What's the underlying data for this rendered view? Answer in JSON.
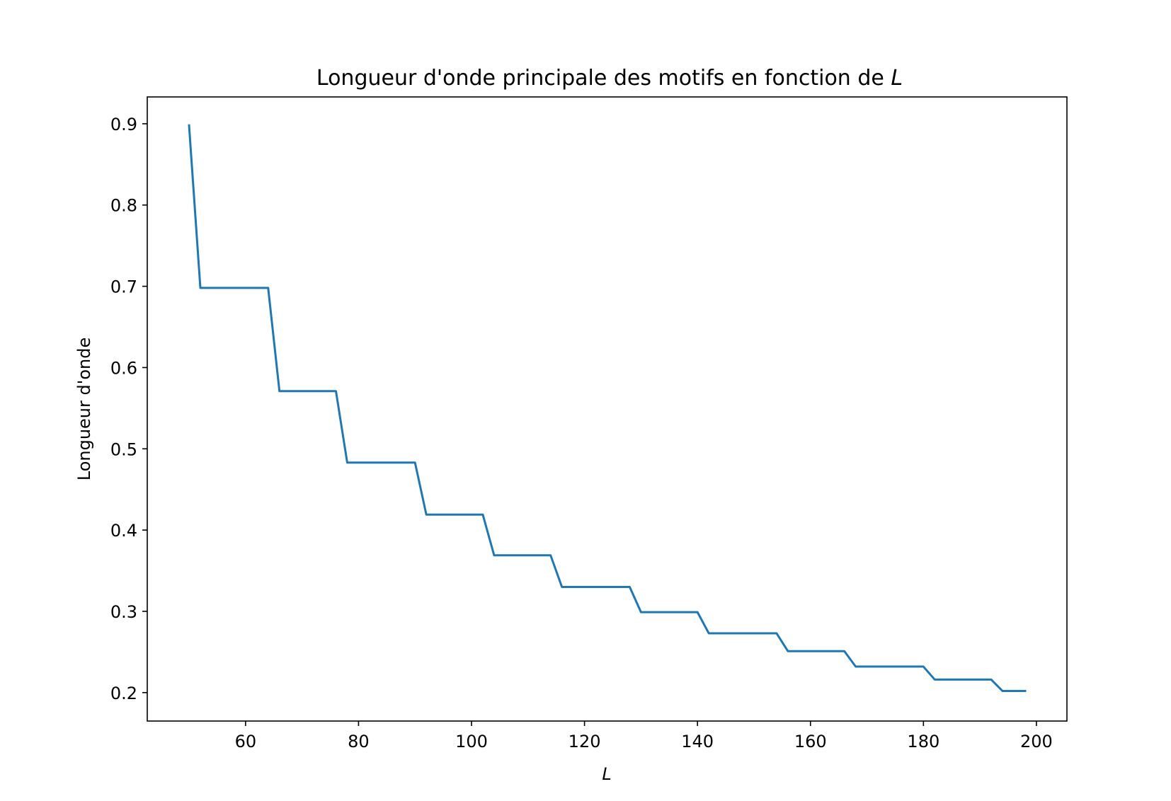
{
  "chart_data": {
    "type": "line",
    "title": "Longueur d'onde principale des motifs en fonction de ",
    "title_var": "L",
    "xlabel": "L",
    "ylabel": "Longueur d'onde",
    "xlim": [
      42.6,
      205.4
    ],
    "ylim": [
      0.165,
      0.933
    ],
    "xticks": [
      60,
      80,
      100,
      120,
      140,
      160,
      180,
      200
    ],
    "yticks": [
      0.2,
      0.3,
      0.4,
      0.5,
      0.6,
      0.7,
      0.8,
      0.9
    ],
    "grid": false,
    "color": "#1f77b4",
    "series": [
      {
        "x": [
          50,
          52,
          54,
          56,
          58,
          60,
          62,
          64,
          66,
          68,
          70,
          72,
          74,
          76,
          78,
          80,
          82,
          84,
          86,
          88,
          90,
          92,
          94,
          96,
          98,
          100,
          102,
          104,
          106,
          108,
          110,
          112,
          114,
          116,
          118,
          120,
          122,
          124,
          126,
          128,
          130,
          132,
          134,
          136,
          138,
          140,
          142,
          144,
          146,
          148,
          150,
          152,
          154,
          156,
          158,
          160,
          162,
          164,
          166,
          168,
          170,
          172,
          174,
          176,
          178,
          180,
          182,
          184,
          186,
          188,
          190,
          192,
          194,
          196,
          198
        ],
        "y": [
          0.898,
          0.698,
          0.698,
          0.698,
          0.698,
          0.698,
          0.698,
          0.698,
          0.571,
          0.571,
          0.571,
          0.571,
          0.571,
          0.571,
          0.483,
          0.483,
          0.483,
          0.483,
          0.483,
          0.483,
          0.483,
          0.419,
          0.419,
          0.419,
          0.419,
          0.419,
          0.419,
          0.369,
          0.369,
          0.369,
          0.369,
          0.369,
          0.369,
          0.33,
          0.33,
          0.33,
          0.33,
          0.33,
          0.33,
          0.33,
          0.299,
          0.299,
          0.299,
          0.299,
          0.299,
          0.299,
          0.273,
          0.273,
          0.273,
          0.273,
          0.273,
          0.273,
          0.273,
          0.251,
          0.251,
          0.251,
          0.251,
          0.251,
          0.251,
          0.232,
          0.232,
          0.232,
          0.232,
          0.232,
          0.232,
          0.232,
          0.216,
          0.216,
          0.216,
          0.216,
          0.216,
          0.216,
          0.202,
          0.202,
          0.202
        ]
      }
    ]
  }
}
